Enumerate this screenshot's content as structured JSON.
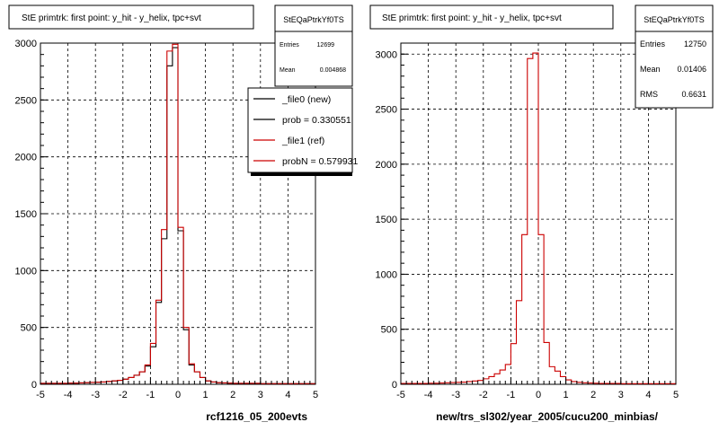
{
  "chart_data": [
    {
      "type": "line",
      "title": "StE primtrk: first point: y_hit - y_helix, tpc+svt",
      "xlabel": "rcf1216_05_200evts",
      "ylabel": "",
      "xlim": [
        -5,
        5
      ],
      "ylim": [
        0,
        3000
      ],
      "x_ticks": [
        "-5",
        "-4",
        "-3",
        "-2",
        "-1",
        "0",
        "1",
        "2",
        "3",
        "4",
        "5"
      ],
      "y_ticks": [
        "0",
        "500",
        "1000",
        "1500",
        "2000",
        "2500",
        "3000"
      ],
      "grid": true,
      "bin_width": 0.2,
      "x_edges_start": -5,
      "stats": {
        "name": "StEQaPtrkYf0TS",
        "rows": [
          {
            "label": "Entries",
            "value": "12699"
          },
          {
            "label": "Mean",
            "value": "0.004868"
          }
        ]
      },
      "legend": {
        "placement": "top-right",
        "entries": [
          {
            "label": "_file0 (new)",
            "color": "#000000"
          },
          {
            "label": "prob = 0.330551",
            "color": "#000000"
          },
          {
            "label": "_file1 (ref)",
            "color": "#cc0000"
          },
          {
            "label": "probN = 0.579931",
            "color": "#cc0000"
          }
        ]
      },
      "series": [
        {
          "name": "_file0 (new)",
          "color": "#000000",
          "values": [
            8,
            8,
            8,
            8,
            8,
            10,
            10,
            12,
            14,
            16,
            18,
            20,
            25,
            30,
            35,
            45,
            60,
            80,
            110,
            160,
            330,
            720,
            1280,
            2800,
            2960,
            1350,
            480,
            170,
            110,
            60,
            30,
            20,
            14,
            12,
            10,
            8,
            8,
            8,
            8,
            8,
            6,
            6,
            6,
            6,
            6,
            6,
            6,
            6,
            6,
            6
          ]
        },
        {
          "name": "_file1 (ref)",
          "color": "#cc0000",
          "values": [
            8,
            8,
            8,
            8,
            8,
            10,
            10,
            12,
            14,
            16,
            18,
            20,
            25,
            30,
            35,
            45,
            60,
            80,
            110,
            170,
            360,
            740,
            1360,
            2930,
            2990,
            1380,
            500,
            180,
            110,
            60,
            30,
            20,
            14,
            12,
            10,
            8,
            8,
            8,
            8,
            8,
            6,
            6,
            6,
            6,
            6,
            6,
            6,
            6,
            6,
            6
          ]
        }
      ]
    },
    {
      "type": "line",
      "title": "StE primtrk: first point: y_hit - y_helix, tpc+svt",
      "xlabel": "new/trs_sl302/year_2005/cucu200_minbias/",
      "ylabel": "",
      "xlim": [
        -5,
        5
      ],
      "ylim": [
        0,
        3100
      ],
      "x_ticks": [
        "-5",
        "-4",
        "-3",
        "-2",
        "-1",
        "0",
        "1",
        "2",
        "3",
        "4",
        "5"
      ],
      "y_ticks": [
        "0",
        "500",
        "1000",
        "1500",
        "2000",
        "2500",
        "3000"
      ],
      "grid": true,
      "bin_width": 0.2,
      "x_edges_start": -5,
      "stats": {
        "name": "StEQaPtrkYf0TS",
        "rows": [
          {
            "label": "Entries",
            "value": "12750"
          },
          {
            "label": "Mean",
            "value": "0.01406"
          },
          {
            "label": "RMS",
            "value": "0.6631"
          }
        ]
      },
      "series": [
        {
          "name": "",
          "color": "#cc0000",
          "values": [
            8,
            8,
            8,
            8,
            8,
            10,
            10,
            12,
            14,
            16,
            18,
            20,
            25,
            30,
            35,
            50,
            70,
            95,
            130,
            180,
            370,
            760,
            1360,
            2960,
            3010,
            1360,
            380,
            160,
            120,
            70,
            40,
            25,
            18,
            14,
            12,
            10,
            8,
            8,
            8,
            8,
            6,
            6,
            6,
            6,
            6,
            6,
            6,
            6,
            6,
            6
          ]
        }
      ]
    }
  ]
}
